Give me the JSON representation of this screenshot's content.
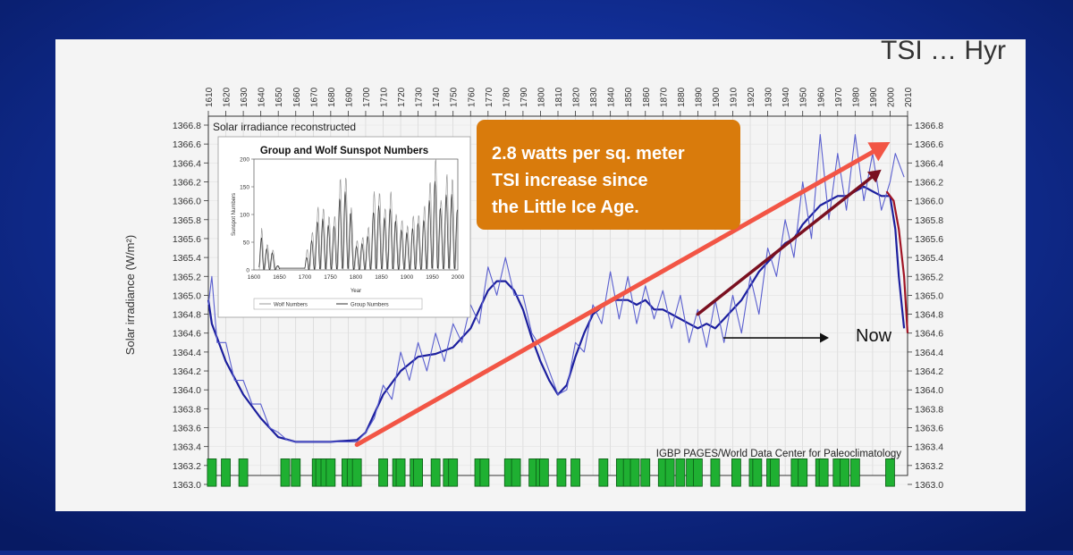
{
  "slide": {
    "title_fragment": "TSI … Hyr",
    "background_color": "#0f2a8a",
    "callout_color": "#d97b0c",
    "arrow_color": "#f25545"
  },
  "chart_data": {
    "type": "line",
    "xlim": [
      1610,
      2010
    ],
    "ylim": [
      1363.0,
      1366.8
    ],
    "x_ticks": [
      1610,
      1620,
      1630,
      1640,
      1650,
      1660,
      1670,
      1680,
      1690,
      1700,
      1710,
      1720,
      1730,
      1740,
      1750,
      1760,
      1770,
      1780,
      1790,
      1800,
      1810,
      1820,
      1830,
      1840,
      1850,
      1860,
      1870,
      1880,
      1890,
      1900,
      1910,
      1920,
      1930,
      1940,
      1950,
      1960,
      1970,
      1980,
      1990,
      2000,
      2010
    ],
    "y_ticks": [
      "1363.0",
      "1363.2",
      "1363.4",
      "1363.6",
      "1363.8",
      "1364.0",
      "1364.2",
      "1364.4",
      "1364.6",
      "1364.8",
      "1365.0",
      "1365.2",
      "1365.4",
      "1365.6",
      "1365.8",
      "1366.0",
      "1366.2",
      "1366.4",
      "1366.6",
      "1366.8"
    ],
    "ylabel": "Solar irradiance (W/m²)",
    "inner_label": "Solar irradiance reconstructed",
    "source": "IGBP PAGES/World Data Center for Paleoclimatology",
    "series": [
      {
        "role": "smoothed",
        "x": [
          1610,
          1612,
          1620,
          1630,
          1640,
          1650,
          1660,
          1680,
          1695,
          1700,
          1710,
          1720,
          1730,
          1740,
          1750,
          1760,
          1765,
          1770,
          1775,
          1780,
          1785,
          1790,
          1795,
          1800,
          1805,
          1810,
          1815,
          1820,
          1825,
          1830,
          1840,
          1850,
          1855,
          1860,
          1865,
          1870,
          1875,
          1880,
          1885,
          1890,
          1895,
          1900,
          1905,
          1910,
          1915,
          1920,
          1925,
          1930,
          1935,
          1940,
          1945,
          1950,
          1955,
          1960,
          1965,
          1970,
          1975,
          1980,
          1985,
          1990,
          1995,
          2000,
          2003,
          2005,
          2008
        ],
        "y": [
          1364.95,
          1364.7,
          1364.3,
          1363.95,
          1363.7,
          1363.5,
          1363.45,
          1363.45,
          1363.47,
          1363.55,
          1363.95,
          1364.2,
          1364.35,
          1364.38,
          1364.45,
          1364.65,
          1364.85,
          1365.05,
          1365.15,
          1365.15,
          1365.05,
          1364.85,
          1364.55,
          1364.3,
          1364.1,
          1363.95,
          1364.05,
          1364.35,
          1364.6,
          1364.8,
          1364.95,
          1364.95,
          1364.9,
          1364.95,
          1364.85,
          1364.85,
          1364.8,
          1364.75,
          1364.7,
          1364.65,
          1364.7,
          1364.65,
          1364.75,
          1364.85,
          1364.95,
          1365.1,
          1365.25,
          1365.35,
          1365.45,
          1365.55,
          1365.6,
          1365.75,
          1365.85,
          1365.95,
          1366.0,
          1366.05,
          1366.05,
          1366.1,
          1366.15,
          1366.1,
          1366.05,
          1366.05,
          1365.7,
          1365.2,
          1364.65
        ]
      },
      {
        "role": "cycles",
        "x": [
          1610,
          1612,
          1615,
          1620,
          1625,
          1630,
          1635,
          1640,
          1645,
          1650,
          1655,
          1660,
          1680,
          1695,
          1700,
          1705,
          1710,
          1715,
          1720,
          1725,
          1730,
          1735,
          1740,
          1745,
          1750,
          1755,
          1760,
          1765,
          1770,
          1775,
          1780,
          1785,
          1790,
          1795,
          1800,
          1805,
          1810,
          1815,
          1820,
          1825,
          1830,
          1835,
          1840,
          1845,
          1850,
          1855,
          1860,
          1865,
          1870,
          1875,
          1880,
          1885,
          1890,
          1895,
          1900,
          1905,
          1910,
          1915,
          1920,
          1925,
          1930,
          1935,
          1940,
          1945,
          1950,
          1955,
          1960,
          1965,
          1970,
          1975,
          1980,
          1985,
          1990,
          1995,
          2000,
          2003,
          2005,
          2008
        ],
        "y": [
          1364.9,
          1365.2,
          1364.5,
          1364.5,
          1364.1,
          1364.1,
          1363.85,
          1363.85,
          1363.6,
          1363.55,
          1363.47,
          1363.45,
          1363.45,
          1363.45,
          1363.55,
          1363.7,
          1364.05,
          1363.9,
          1364.4,
          1364.1,
          1364.5,
          1364.2,
          1364.6,
          1364.3,
          1364.7,
          1364.5,
          1364.9,
          1364.7,
          1365.3,
          1365.0,
          1365.4,
          1365.0,
          1365.0,
          1364.6,
          1364.45,
          1364.2,
          1363.95,
          1364.0,
          1364.5,
          1364.4,
          1364.9,
          1364.7,
          1365.25,
          1364.75,
          1365.2,
          1364.7,
          1365.1,
          1364.75,
          1365.05,
          1364.65,
          1365.0,
          1364.5,
          1364.85,
          1364.45,
          1364.95,
          1364.5,
          1365.0,
          1364.6,
          1365.2,
          1364.8,
          1365.5,
          1365.2,
          1365.8,
          1365.4,
          1366.2,
          1365.6,
          1366.7,
          1365.8,
          1366.5,
          1365.9,
          1366.7,
          1366.0,
          1366.5,
          1365.9,
          1366.2,
          1366.5,
          1366.4,
          1366.25
        ]
      }
    ],
    "recent_decline": {
      "x": [
        1998,
        2002,
        2005,
        2008,
        2010
      ],
      "y": [
        1366.1,
        1366.0,
        1365.7,
        1365.2,
        1364.6
      ]
    },
    "bars": [
      1612,
      1620,
      1630,
      1654,
      1660,
      1672,
      1674,
      1677,
      1680,
      1689,
      1692,
      1695,
      1710,
      1718,
      1720,
      1728,
      1730,
      1740,
      1747,
      1750,
      1765,
      1768,
      1782,
      1786,
      1796,
      1800,
      1802,
      1812,
      1820,
      1836,
      1846,
      1850,
      1854,
      1860,
      1870,
      1874,
      1880,
      1886,
      1890,
      1900,
      1912,
      1922,
      1924,
      1932,
      1934,
      1946,
      1950,
      1960,
      1962,
      1970,
      1974,
      1980,
      2000
    ],
    "trend_arrows": [
      {
        "from": [
          1695,
          1363.42
        ],
        "to": [
          2000,
          1366.62
        ],
        "color": "#f25545"
      },
      {
        "from": [
          1890,
          1364.8
        ],
        "to": [
          1995,
          1366.33
        ],
        "color": "#7a1020"
      }
    ],
    "now_arrow": {
      "from": [
        1905,
        1364.55
      ],
      "to": [
        1965,
        1364.55
      ],
      "label": "Now"
    },
    "callout": [
      "2.8 watts per sq. meter",
      "TSI  increase since",
      "the Little Ice Age."
    ],
    "inset": {
      "title": "Group and Wolf Sunspot Numbers",
      "ylabel": "Sunspot Numbers",
      "xlabel": "Year",
      "xlim": [
        1600,
        2000
      ],
      "ylim": [
        0,
        200
      ],
      "x_ticks": [
        "1600",
        "1650",
        "1700",
        "1750",
        "1800",
        "1850",
        "1900",
        "1950",
        "2000"
      ],
      "y_ticks": [
        "0",
        "50",
        "100",
        "150",
        "200"
      ],
      "legend": [
        "Wolf Numbers",
        "Group Numbers"
      ],
      "activity": [
        [
          1610,
          30
        ],
        [
          1615,
          70
        ],
        [
          1620,
          45
        ],
        [
          1630,
          40
        ],
        [
          1640,
          30
        ],
        [
          1645,
          10
        ],
        [
          1650,
          5
        ],
        [
          1700,
          6
        ],
        [
          1705,
          40
        ],
        [
          1718,
          70
        ],
        [
          1727,
          110
        ],
        [
          1738,
          100
        ],
        [
          1750,
          85
        ],
        [
          1761,
          90
        ],
        [
          1769,
          150
        ],
        [
          1778,
          160
        ],
        [
          1788,
          130
        ],
        [
          1798,
          45
        ],
        [
          1805,
          50
        ],
        [
          1816,
          55
        ],
        [
          1830,
          80
        ],
        [
          1837,
          140
        ],
        [
          1848,
          125
        ],
        [
          1860,
          95
        ],
        [
          1870,
          135
        ],
        [
          1883,
          75
        ],
        [
          1894,
          85
        ],
        [
          1906,
          65
        ],
        [
          1917,
          105
        ],
        [
          1928,
          80
        ],
        [
          1937,
          115
        ],
        [
          1947,
          150
        ],
        [
          1957,
          185
        ],
        [
          1968,
          110
        ],
        [
          1979,
          160
        ],
        [
          1990,
          150
        ],
        [
          1999,
          120
        ]
      ]
    }
  }
}
